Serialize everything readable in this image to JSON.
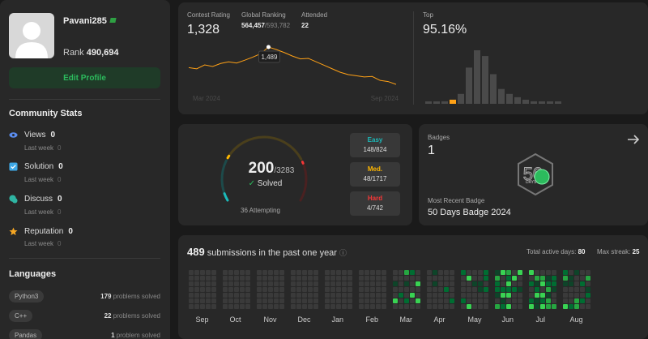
{
  "profile": {
    "username": "Pavani285",
    "rank_label": "Rank",
    "rank_value": "490,694",
    "edit_button": "Edit Profile"
  },
  "community": {
    "title": "Community Stats",
    "items": [
      {
        "label": "Views",
        "value": "0",
        "sub": "Last week",
        "sub_value": "0",
        "icon": "eye-icon",
        "color": "#5b8def"
      },
      {
        "label": "Solution",
        "value": "0",
        "sub": "Last week",
        "sub_value": "0",
        "icon": "check-square-icon",
        "color": "#3ea8e6"
      },
      {
        "label": "Discuss",
        "value": "0",
        "sub": "Last week",
        "sub_value": "0",
        "icon": "chat-icon",
        "color": "#2fb5a3"
      },
      {
        "label": "Reputation",
        "value": "0",
        "sub": "Last week",
        "sub_value": "0",
        "icon": "star-icon",
        "color": "#f5a623"
      }
    ]
  },
  "languages": {
    "title": "Languages",
    "items": [
      {
        "name": "Python3",
        "count": "179",
        "suffix": "problems solved"
      },
      {
        "name": "C++",
        "count": "22",
        "suffix": "problems solved"
      },
      {
        "name": "Pandas",
        "count": "1",
        "suffix": "problem solved"
      }
    ]
  },
  "contest": {
    "rating_label": "Contest Rating",
    "rating_value": "1,328",
    "global_label": "Global Ranking",
    "global_value": "564,457",
    "global_total": "/593,782",
    "attended_label": "Attended",
    "attended_value": "22",
    "top_label": "Top",
    "top_value": "95.16%",
    "tooltip": "1,489",
    "start_label": "Mar 2024",
    "end_label": "Sep 2024"
  },
  "chart_data": [
    {
      "type": "line",
      "title": "Contest Rating",
      "x_start": "Mar 2024",
      "x_end": "Sep 2024",
      "values": [
        1400,
        1395,
        1412,
        1405,
        1418,
        1425,
        1420,
        1432,
        1445,
        1460,
        1489,
        1478,
        1465,
        1450,
        1438,
        1440,
        1425,
        1410,
        1395,
        1380,
        1370,
        1365,
        1360,
        1362,
        1345,
        1340,
        1328
      ]
    },
    {
      "type": "bar",
      "title": "Top",
      "highlight_index": 3,
      "values": [
        2,
        2,
        3,
        5,
        12,
        44,
        65,
        58,
        36,
        18,
        12,
        8,
        5,
        3,
        2,
        2,
        1
      ]
    }
  ],
  "solved": {
    "count": "200",
    "total": "/3283",
    "label": "Solved",
    "attempting": "36 Attempting",
    "easy_label": "Easy",
    "easy_value": "148/824",
    "easy_color": "#1cbaba",
    "med_label": "Med.",
    "med_value": "48/1717",
    "med_color": "#ffb700",
    "hard_label": "Hard",
    "hard_value": "4/742",
    "hard_color": "#f63737",
    "easy_solved": 148,
    "easy_total": 824,
    "med_solved": 48,
    "med_total": 1717,
    "hard_solved": 4,
    "hard_total": 742
  },
  "badges": {
    "label": "Badges",
    "count": "1",
    "recent_label": "Most Recent Badge",
    "recent_name": "50 Days Badge 2024",
    "badge_icon": "50-days-badge-icon",
    "badge_text": "DAYS"
  },
  "submissions": {
    "count": "489",
    "suffix": "submissions in the past one year",
    "active_label": "Total active days:",
    "active_value": "80",
    "streak_label": "Max streak:",
    "streak_value": "25",
    "months": [
      "Sep",
      "Oct",
      "Nov",
      "Dec",
      "Jan",
      "Feb",
      "Mar",
      "Apr",
      "May",
      "Jun",
      "Jul",
      "Aug"
    ]
  }
}
